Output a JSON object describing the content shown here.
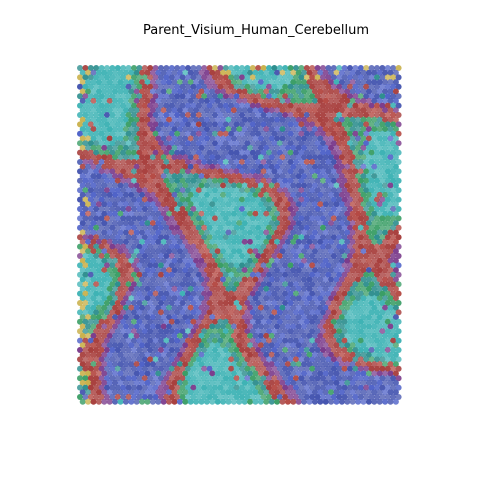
{
  "title": "Parent_Visium_Human_Cerebellum"
}
